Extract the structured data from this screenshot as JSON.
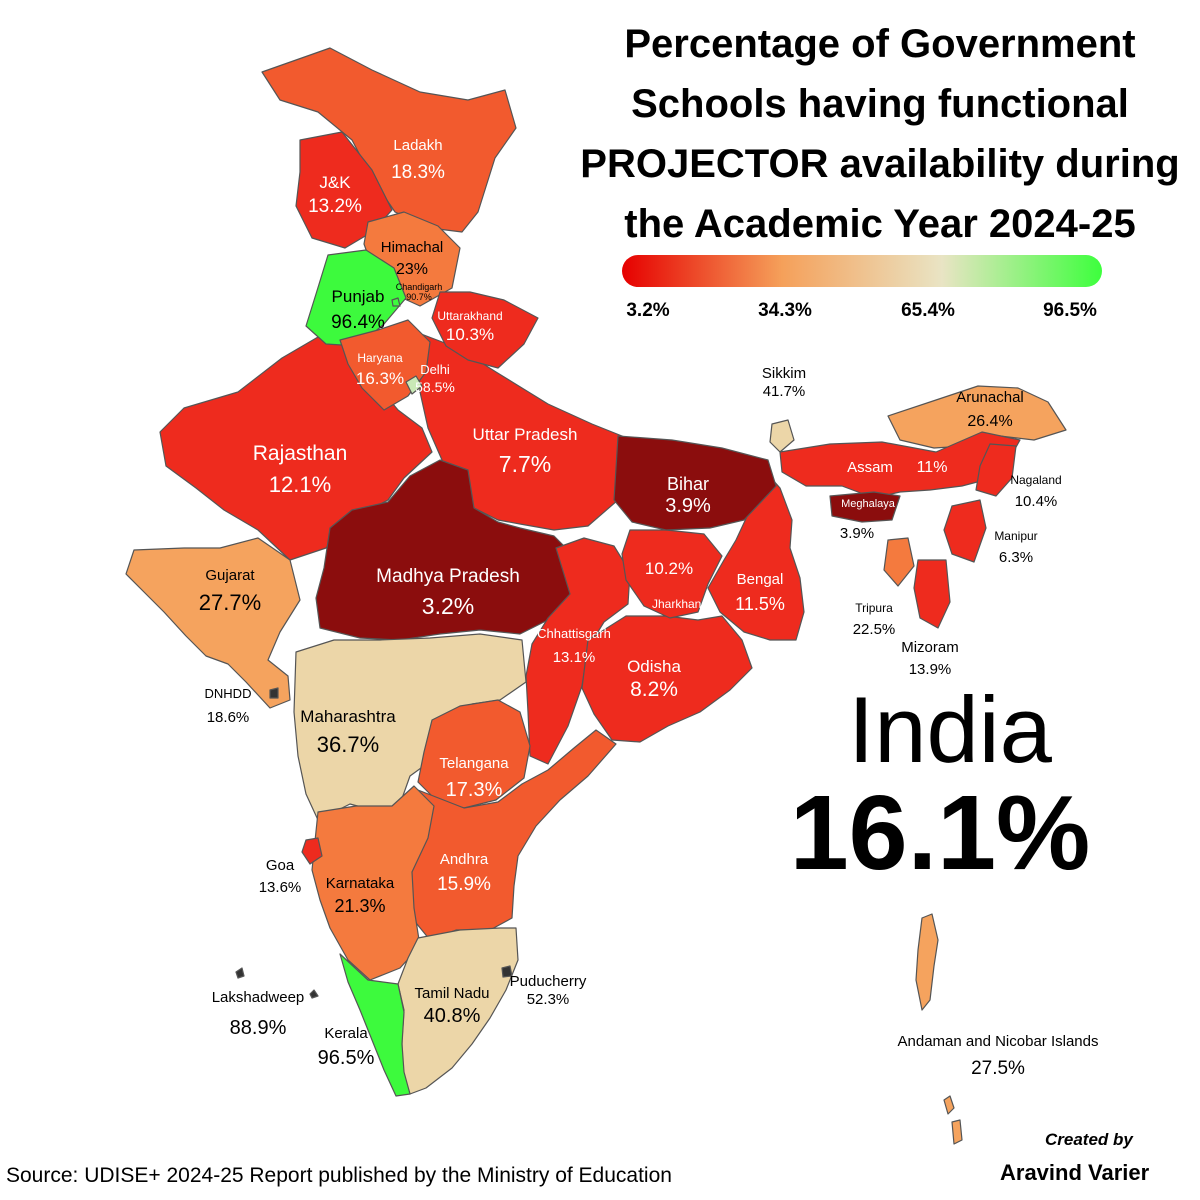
{
  "title_lines": [
    "Percentage of Government",
    "Schools having functional",
    "PROJECTOR availability during",
    "the Academic Year 2024-25"
  ],
  "legend": {
    "ticks": [
      "3.2%",
      "34.3%",
      "65.4%",
      "96.5%"
    ],
    "colors": [
      "#e60000",
      "#f5a05a",
      "#e9e4c4",
      "#3dff3d"
    ]
  },
  "india": {
    "name": "India",
    "value": "16.1%"
  },
  "source": "Source: UDISE+ 2024-25 Report published by the Ministry of Education",
  "credit": {
    "line1": "Created by",
    "line2": "Aravind Varier"
  },
  "regions": [
    {
      "name": "Ladakh",
      "value": "18.3%",
      "pct": 18.3
    },
    {
      "name": "J&K",
      "value": "13.2%",
      "pct": 13.2
    },
    {
      "name": "Himachal",
      "value": "23%",
      "pct": 23
    },
    {
      "name": "Punjab",
      "value": "96.4%",
      "pct": 96.4
    },
    {
      "name": "Chandigarh",
      "value": "90.7%",
      "pct": 90.7
    },
    {
      "name": "Uttarakhand",
      "value": "10.3%",
      "pct": 10.3
    },
    {
      "name": "Haryana",
      "value": "16.3%",
      "pct": 16.3
    },
    {
      "name": "Delhi",
      "value": "58.5%",
      "pct": 58.5
    },
    {
      "name": "Rajasthan",
      "value": "12.1%",
      "pct": 12.1
    },
    {
      "name": "Uttar Pradesh",
      "value": "7.7%",
      "pct": 7.7
    },
    {
      "name": "Bihar",
      "value": "3.9%",
      "pct": 3.9
    },
    {
      "name": "Sikkim",
      "value": "41.7%",
      "pct": 41.7
    },
    {
      "name": "Arunachal",
      "value": "26.4%",
      "pct": 26.4
    },
    {
      "name": "Assam",
      "value": "11%",
      "pct": 11
    },
    {
      "name": "Nagaland",
      "value": "10.4%",
      "pct": 10.4
    },
    {
      "name": "Meghalaya",
      "value": "3.9%",
      "pct": 3.9
    },
    {
      "name": "Manipur",
      "value": "6.3%",
      "pct": 6.3
    },
    {
      "name": "Tripura",
      "value": "22.5%",
      "pct": 22.5
    },
    {
      "name": "Mizoram",
      "value": "13.9%",
      "pct": 13.9
    },
    {
      "name": "Gujarat",
      "value": "27.7%",
      "pct": 27.7
    },
    {
      "name": "Madhya Pradesh",
      "value": "3.2%",
      "pct": 3.2
    },
    {
      "name": "Jharkhand",
      "value": "10.2%",
      "pct": 10.2
    },
    {
      "name": "Bengal",
      "value": "11.5%",
      "pct": 11.5
    },
    {
      "name": "Chhattisgarh",
      "value": "13.1%",
      "pct": 13.1
    },
    {
      "name": "Odisha",
      "value": "8.2%",
      "pct": 8.2
    },
    {
      "name": "DNHDD",
      "value": "18.6%",
      "pct": 18.6
    },
    {
      "name": "Maharashtra",
      "value": "36.7%",
      "pct": 36.7
    },
    {
      "name": "Telangana",
      "value": "17.3%",
      "pct": 17.3
    },
    {
      "name": "Goa",
      "value": "13.6%",
      "pct": 13.6
    },
    {
      "name": "Karnataka",
      "value": "21.3%",
      "pct": 21.3
    },
    {
      "name": "Andhra",
      "value": "15.9%",
      "pct": 15.9
    },
    {
      "name": "Tamil Nadu",
      "value": "40.8%",
      "pct": 40.8
    },
    {
      "name": "Puducherry",
      "value": "52.3%",
      "pct": 52.3
    },
    {
      "name": "Kerala",
      "value": "96.5%",
      "pct": 96.5
    },
    {
      "name": "Lakshadweep",
      "value": "88.9%",
      "pct": 88.9
    },
    {
      "name": "Andaman and Nicobar Islands",
      "value": "27.5%",
      "pct": 27.5
    }
  ]
}
